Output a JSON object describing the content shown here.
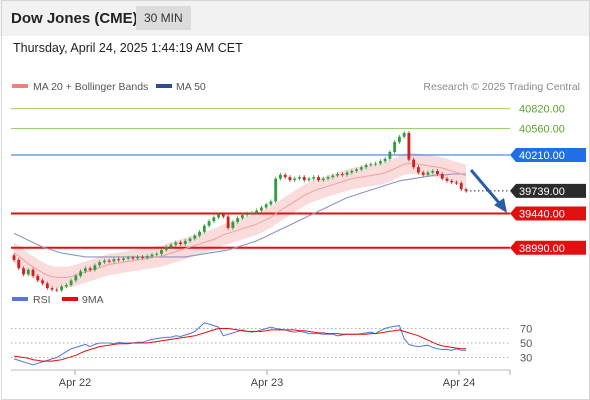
{
  "header": {
    "title": "Dow Jones (CME)",
    "interval": "30 MIN"
  },
  "datetime": "Thursday, April 24, 2025 1:44:19 AM CET",
  "legend": [
    {
      "label": "MA 20 + Bollinger Bands",
      "color": "#f08080"
    },
    {
      "label": "MA 50",
      "color": "#2a4f8f"
    }
  ],
  "watermark": "Research © 2025 Trading Central",
  "rsi_legend": [
    {
      "label": "RSI",
      "color": "#5577dd"
    },
    {
      "label": "9MA",
      "color": "#e01010"
    }
  ],
  "colors": {
    "resistance_green": "#8ec95a",
    "resistance_blue": "#1f6fe5",
    "support_red": "#e01010",
    "current_price": "#2b2b2b",
    "bull_candle": "#2e9e3e",
    "bear_candle": "#cc2222",
    "arrow": "#2a5da8",
    "bollinger_fill": "#fbdcdc"
  },
  "chart_data": [
    {
      "type": "candlestick",
      "x_ticks": [
        "Apr 22",
        "Apr 23",
        "Apr 24"
      ],
      "ylim": [
        38500,
        41000
      ],
      "levels": [
        {
          "label": "40820.00",
          "value": 40820,
          "kind": "resistance",
          "color": "#8ec95a"
        },
        {
          "label": "40560.00",
          "value": 40560,
          "kind": "resistance",
          "color": "#8ec95a"
        },
        {
          "label": "40210.00",
          "value": 40210,
          "kind": "resistance",
          "color": "#1f6fe5"
        },
        {
          "label": "39739.00",
          "value": 39739,
          "kind": "current",
          "color": "#2b2b2b"
        },
        {
          "label": "39440.00",
          "value": 39440,
          "kind": "support",
          "color": "#e01010"
        },
        {
          "label": "38990.00",
          "value": 38990,
          "kind": "support",
          "color": "#e01010"
        }
      ],
      "close": [
        38830,
        38720,
        38640,
        38700,
        38620,
        38560,
        38520,
        38460,
        38440,
        38430,
        38480,
        38500,
        38560,
        38620,
        38680,
        38720,
        38700,
        38760,
        38800,
        38820,
        38810,
        38840,
        38830,
        38850,
        38860,
        38850,
        38870,
        38860,
        38880,
        38900,
        38910,
        38960,
        39000,
        39030,
        39060,
        39040,
        39080,
        39110,
        39150,
        39200,
        39280,
        39340,
        39390,
        39430,
        39400,
        39250,
        39330,
        39380,
        39420,
        39440,
        39450,
        39480,
        39520,
        39560,
        39600,
        39900,
        39950,
        39920,
        39880,
        39900,
        39920,
        39880,
        39900,
        39920,
        39880,
        39900,
        39920,
        39940,
        39960,
        39950,
        39980,
        40000,
        40020,
        40050,
        40080,
        40090,
        40100,
        40130,
        40160,
        40250,
        40380,
        40450,
        40500,
        40150,
        40050,
        39980,
        39950,
        39980,
        40000,
        39960,
        39900,
        39870,
        39850,
        39840,
        39760,
        39739
      ],
      "ma20": [
        38920,
        38880,
        38830,
        38780,
        38740,
        38700,
        38660,
        38630,
        38610,
        38600,
        38600,
        38600,
        38610,
        38630,
        38650,
        38670,
        38690,
        38710,
        38730,
        38750,
        38770,
        38780,
        38790,
        38800,
        38810,
        38820,
        38830,
        38840,
        38850,
        38860,
        38870,
        38880,
        38900,
        38920,
        38940,
        38960,
        38980,
        39000,
        39020,
        39040,
        39060,
        39080,
        39100,
        39130,
        39160,
        39180,
        39200,
        39220,
        39240,
        39260,
        39280,
        39300,
        39330,
        39360,
        39390,
        39440,
        39480,
        39520,
        39560,
        39600,
        39640,
        39680,
        39710,
        39740,
        39760,
        39780,
        39800,
        39820,
        39840,
        39860,
        39880,
        39900,
        39910,
        39920,
        39930,
        39940,
        39950,
        39960,
        39980,
        40000,
        40030,
        40060,
        40090,
        40100,
        40100,
        40090,
        40080,
        40070,
        40060,
        40050,
        40040,
        40020,
        40000,
        39980,
        39960,
        39940
      ],
      "ma50": [
        39180,
        39150,
        39120,
        39090,
        39060,
        39030,
        39000,
        38980,
        38960,
        38940,
        38920,
        38910,
        38900,
        38890,
        38880,
        38870,
        38870,
        38870,
        38870,
        38870,
        38870,
        38870,
        38870,
        38870,
        38870,
        38870,
        38870,
        38870,
        38870,
        38870,
        38870,
        38870,
        38870,
        38870,
        38870,
        38870,
        38870,
        38880,
        38890,
        38900,
        38910,
        38920,
        38930,
        38940,
        38950,
        38960,
        38980,
        39000,
        39020,
        39040,
        39060,
        39080,
        39110,
        39140,
        39170,
        39200,
        39230,
        39260,
        39290,
        39320,
        39350,
        39380,
        39410,
        39440,
        39470,
        39500,
        39530,
        39560,
        39590,
        39620,
        39650,
        39670,
        39690,
        39710,
        39730,
        39750,
        39770,
        39790,
        39810,
        39830,
        39850,
        39870,
        39880,
        39890,
        39900,
        39910,
        39920,
        39930,
        39940,
        39950,
        39950,
        39950,
        39960,
        39960,
        39960,
        39960
      ]
    },
    {
      "type": "line",
      "name": "RSI",
      "y_ticks": [
        70,
        50,
        30
      ],
      "ylim": [
        10,
        90
      ],
      "rsi": [
        28,
        26,
        24,
        22,
        20,
        22,
        24,
        26,
        28,
        30,
        34,
        38,
        42,
        44,
        46,
        48,
        45,
        48,
        50,
        50,
        50,
        49,
        51,
        50,
        50,
        50,
        51,
        51,
        53,
        55,
        56,
        57,
        58,
        58,
        60,
        59,
        61,
        63,
        66,
        72,
        78,
        76,
        74,
        72,
        60,
        62,
        64,
        66,
        68,
        66,
        65,
        66,
        68,
        70,
        72,
        70,
        69,
        68,
        66,
        65,
        66,
        65,
        63,
        63,
        63,
        62,
        62,
        62,
        60,
        61,
        62,
        62,
        62,
        63,
        64,
        65,
        63,
        67,
        70,
        72,
        73,
        74,
        56,
        48,
        46,
        45,
        46,
        47,
        44,
        42,
        41,
        41,
        40,
        42,
        40,
        40
      ],
      "ma9": [
        32,
        31,
        30,
        29,
        27,
        26,
        25,
        25,
        25,
        26,
        27,
        29,
        31,
        33,
        36,
        39,
        41,
        43,
        45,
        46,
        47,
        48,
        49,
        49,
        49,
        50,
        50,
        50,
        50,
        51,
        52,
        53,
        54,
        55,
        56,
        57,
        58,
        59,
        60,
        62,
        64,
        66,
        68,
        70,
        70,
        70,
        69,
        68,
        67,
        66,
        66,
        66,
        66,
        67,
        68,
        68,
        68,
        68,
        68,
        68,
        67,
        67,
        66,
        65,
        64,
        64,
        63,
        63,
        63,
        62,
        62,
        62,
        62,
        62,
        62,
        63,
        63,
        64,
        65,
        66,
        67,
        68,
        66,
        64,
        62,
        60,
        57,
        54,
        51,
        48,
        46,
        45,
        44,
        43,
        42,
        42
      ]
    }
  ]
}
